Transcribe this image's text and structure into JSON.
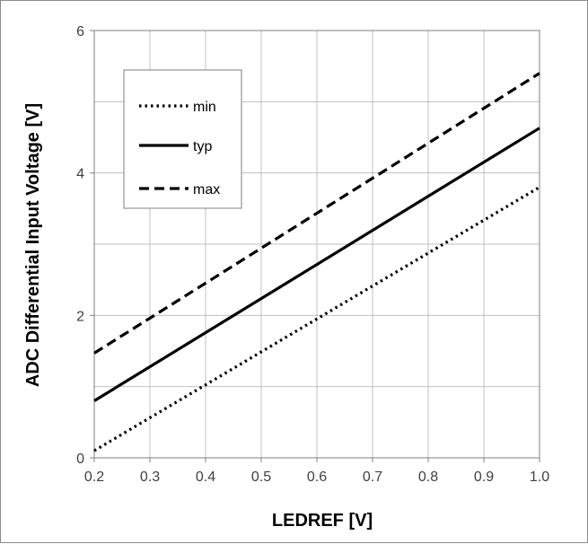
{
  "chart_data": {
    "type": "line",
    "title": "",
    "xlabel": "LEDREF [V]",
    "ylabel": "ADC Differential Input Voltage [V]",
    "xlim": [
      0.2,
      1.0
    ],
    "ylim": [
      0,
      6
    ],
    "x_ticks": [
      "0.2",
      "0.3",
      "0.4",
      "0.5",
      "0.6",
      "0.7",
      "0.8",
      "0.9",
      "1.0"
    ],
    "y_ticks": [
      "0",
      "2",
      "4",
      "6"
    ],
    "minor_y_gridlines": [
      1,
      3,
      5
    ],
    "grid": true,
    "legend_position": "top-left",
    "series": [
      {
        "name": "min",
        "style": "dotted",
        "color": "#000000",
        "x": [
          0.2,
          1.0
        ],
        "y": [
          0.1,
          3.8
        ]
      },
      {
        "name": "typ",
        "style": "solid",
        "color": "#000000",
        "x": [
          0.2,
          1.0
        ],
        "y": [
          0.8,
          4.63
        ]
      },
      {
        "name": "max",
        "style": "dashed",
        "color": "#000000",
        "x": [
          0.2,
          1.0
        ],
        "y": [
          1.47,
          5.4
        ]
      }
    ],
    "colors": {
      "grid": "#c0c0c0",
      "axis": "#808080",
      "plot_border": "#808080"
    }
  }
}
